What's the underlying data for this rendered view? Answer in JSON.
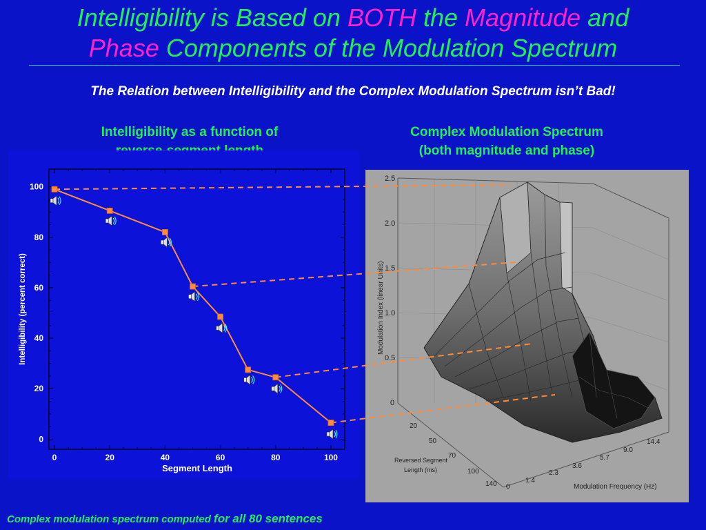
{
  "title": {
    "l1_a": "Intelligibility is Based on ",
    "l1_b": "BOTH",
    "l1_c": " the ",
    "l1_d": "Magnitude",
    "l1_e": " and",
    "l2_a": "Phase",
    "l2_b": " Components of the Modulation Spectrum"
  },
  "subtitle": "The Relation between Intelligibility and the Complex Modulation Spectrum isn’t Bad!",
  "left_caption": {
    "line1": "Intelligibility as a function of",
    "line2": "reverse-segment length"
  },
  "right_caption": {
    "line1": "Complex Modulation Spectrum",
    "line2": "(both magnitude and phase)"
  },
  "footer": {
    "part1": "Complex modulation spectrum computed ",
    "part2": "for all 80 sentences"
  },
  "colors": {
    "background": "#0b13c8",
    "title_green": "#22ee55",
    "title_magenta": "#ff22cc",
    "series": "#ff8c3a"
  },
  "speaker_icon": "speaker-icon",
  "chart_data": [
    {
      "type": "line",
      "xlabel": "Segment Length",
      "ylabel": "Intelligibility (percent correct)",
      "xlim": [
        -2,
        105
      ],
      "ylim": [
        -4,
        107
      ],
      "xticks": [
        0,
        20,
        40,
        60,
        80,
        100
      ],
      "yticks": [
        0,
        20,
        40,
        60,
        80,
        100
      ],
      "series": [
        {
          "x": [
            0,
            20,
            40,
            50,
            60,
            70,
            80,
            100
          ],
          "y": [
            99,
            90.5,
            82,
            60.5,
            48.5,
            27.5,
            24.5,
            6.5
          ]
        }
      ],
      "speaker_markers_y": [
        94.5,
        86.5,
        78,
        56.5,
        44,
        23.5,
        20,
        2
      ]
    },
    {
      "type": "surface",
      "zlabel": "Modulation Index (linear Units)",
      "ylabel": "Reversed Segment Length (ms)",
      "xlabel": "Modulation Frequency (Hz)",
      "zticks": [
        "0",
        "0.5",
        "1.0",
        "1.5",
        "2.0",
        "2.5"
      ],
      "yticks": [
        "140",
        "100",
        "70",
        "50",
        "20"
      ],
      "xticks": [
        "0",
        "1.4",
        "2.3",
        "3.6",
        "5.7",
        "9.0",
        "14.4"
      ]
    }
  ]
}
